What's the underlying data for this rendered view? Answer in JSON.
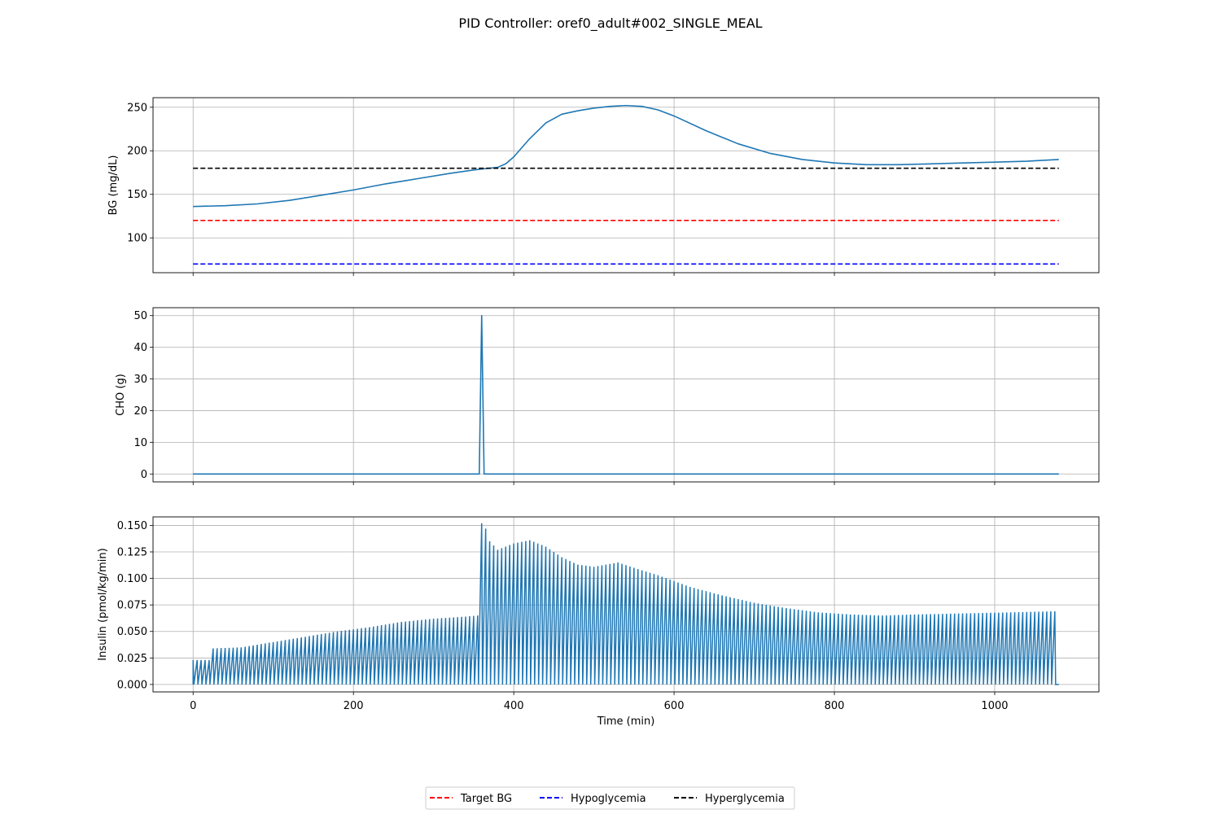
{
  "title": "PID Controller: oref0_adult#002_SINGLE_MEAL",
  "chart_data": [
    {
      "type": "line",
      "panel": "bg",
      "ylabel": "BG (mg/dL)",
      "xlim": [
        -50,
        1130
      ],
      "ylim": [
        60,
        261
      ],
      "xticks": [
        0,
        200,
        400,
        600,
        800,
        1000
      ],
      "yticks": [
        100,
        150,
        200,
        250
      ],
      "grid": true,
      "series": [
        {
          "name": "",
          "color": "#1f77b4",
          "style": "solid",
          "x": [
            0,
            40,
            80,
            120,
            160,
            200,
            240,
            280,
            320,
            350,
            370,
            380,
            390,
            400,
            420,
            440,
            460,
            480,
            500,
            520,
            540,
            560,
            580,
            600,
            640,
            680,
            720,
            760,
            800,
            840,
            880,
            920,
            960,
            1000,
            1040,
            1080
          ],
          "y": [
            136,
            137,
            139,
            143,
            149,
            155,
            162,
            168,
            174,
            178,
            180,
            181,
            185,
            193,
            214,
            232,
            242,
            246,
            249,
            251,
            252,
            251,
            247,
            240,
            223,
            208,
            197,
            190,
            186,
            184,
            184,
            185,
            186,
            187,
            188,
            190
          ]
        },
        {
          "name": "Target BG",
          "color": "#ff0000",
          "style": "dashed",
          "x": [
            0,
            1080
          ],
          "y": [
            120,
            120
          ]
        },
        {
          "name": "Hypoglycemia",
          "color": "#0000ff",
          "style": "dashed",
          "x": [
            0,
            1080
          ],
          "y": [
            70,
            70
          ]
        },
        {
          "name": "Hyperglycemia",
          "color": "#000000",
          "style": "dashed",
          "x": [
            0,
            1080
          ],
          "y": [
            180,
            180
          ]
        }
      ]
    },
    {
      "type": "line",
      "panel": "cho",
      "ylabel": "CHO (g)",
      "xlim": [
        -50,
        1130
      ],
      "ylim": [
        -2.5,
        52.5
      ],
      "xticks": [
        0,
        200,
        400,
        600,
        800,
        1000
      ],
      "yticks": [
        0,
        10,
        20,
        30,
        40,
        50
      ],
      "grid": true,
      "series": [
        {
          "name": "",
          "color": "#1f77b4",
          "style": "solid",
          "x": [
            0,
            357,
            360,
            363,
            1080
          ],
          "y": [
            0,
            0,
            50,
            0,
            0
          ]
        }
      ]
    },
    {
      "type": "line",
      "panel": "insulin",
      "ylabel": "Insulin (pmol/kg/min)",
      "xlabel": "Time (min)",
      "xlim": [
        -50,
        1130
      ],
      "ylim": [
        -0.007,
        0.158
      ],
      "xticks": [
        0,
        200,
        400,
        600,
        800,
        1000
      ],
      "yticks": [
        0.0,
        0.025,
        0.05,
        0.075,
        0.1,
        0.125,
        0.15
      ],
      "ytick_labels": [
        "0.000",
        "0.025",
        "0.050",
        "0.075",
        "0.100",
        "0.125",
        "0.150"
      ],
      "xtick_labels": [
        "0",
        "200",
        "400",
        "600",
        "800",
        "1000"
      ],
      "grid": true,
      "pulse_interval_min": 5,
      "pulse_envelope": {
        "x": [
          0,
          20,
          25,
          60,
          100,
          140,
          180,
          220,
          260,
          300,
          340,
          355,
          360,
          365,
          370,
          380,
          400,
          420,
          440,
          460,
          480,
          500,
          530,
          550,
          580,
          620,
          660,
          700,
          740,
          780,
          820,
          860,
          900,
          960,
          1020,
          1075
        ],
        "y": [
          0.023,
          0.023,
          0.034,
          0.035,
          0.04,
          0.045,
          0.05,
          0.054,
          0.059,
          0.062,
          0.064,
          0.065,
          0.152,
          0.147,
          0.135,
          0.127,
          0.133,
          0.136,
          0.13,
          0.12,
          0.113,
          0.111,
          0.115,
          0.11,
          0.103,
          0.092,
          0.084,
          0.077,
          0.072,
          0.068,
          0.066,
          0.065,
          0.066,
          0.067,
          0.068,
          0.069
        ]
      },
      "series": [
        {
          "name": "",
          "color": "#1f77b4",
          "style": "solid"
        }
      ]
    }
  ],
  "legend": {
    "placement": "bottom-center",
    "entries": [
      {
        "label": "Target BG",
        "color": "#ff0000"
      },
      {
        "label": "Hypoglycemia",
        "color": "#0000ff"
      },
      {
        "label": "Hyperglycemia",
        "color": "#000000"
      }
    ]
  }
}
